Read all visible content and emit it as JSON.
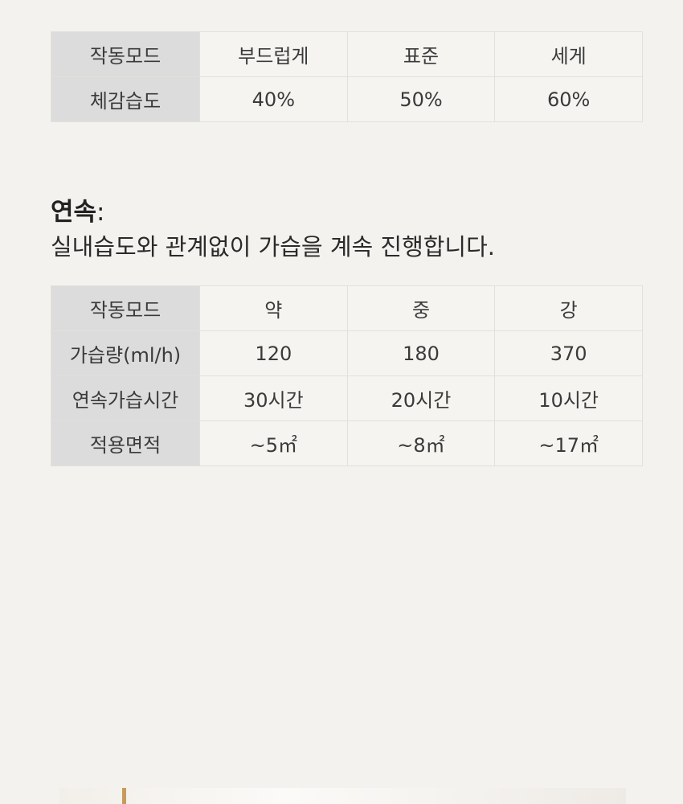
{
  "tables": [
    {
      "rows": [
        [
          "작동모드",
          "부드럽게",
          "표준",
          "세게"
        ],
        [
          "체감습도",
          "40%",
          "50%",
          "60%"
        ]
      ]
    },
    {
      "rows": [
        [
          "작동모드",
          "약",
          "중",
          "강"
        ],
        [
          "가습량(ml/h)",
          "120",
          "180",
          "370"
        ],
        [
          "연속가습시간",
          "30시간",
          "20시간",
          "10시간"
        ],
        [
          "적용면적",
          "~5㎡",
          "~8㎡",
          "~17㎡"
        ]
      ]
    }
  ],
  "section": {
    "title": "연속",
    "title_suffix": ":",
    "description": "실내습도와 관계없이 가습을 계속 진행합니다."
  }
}
